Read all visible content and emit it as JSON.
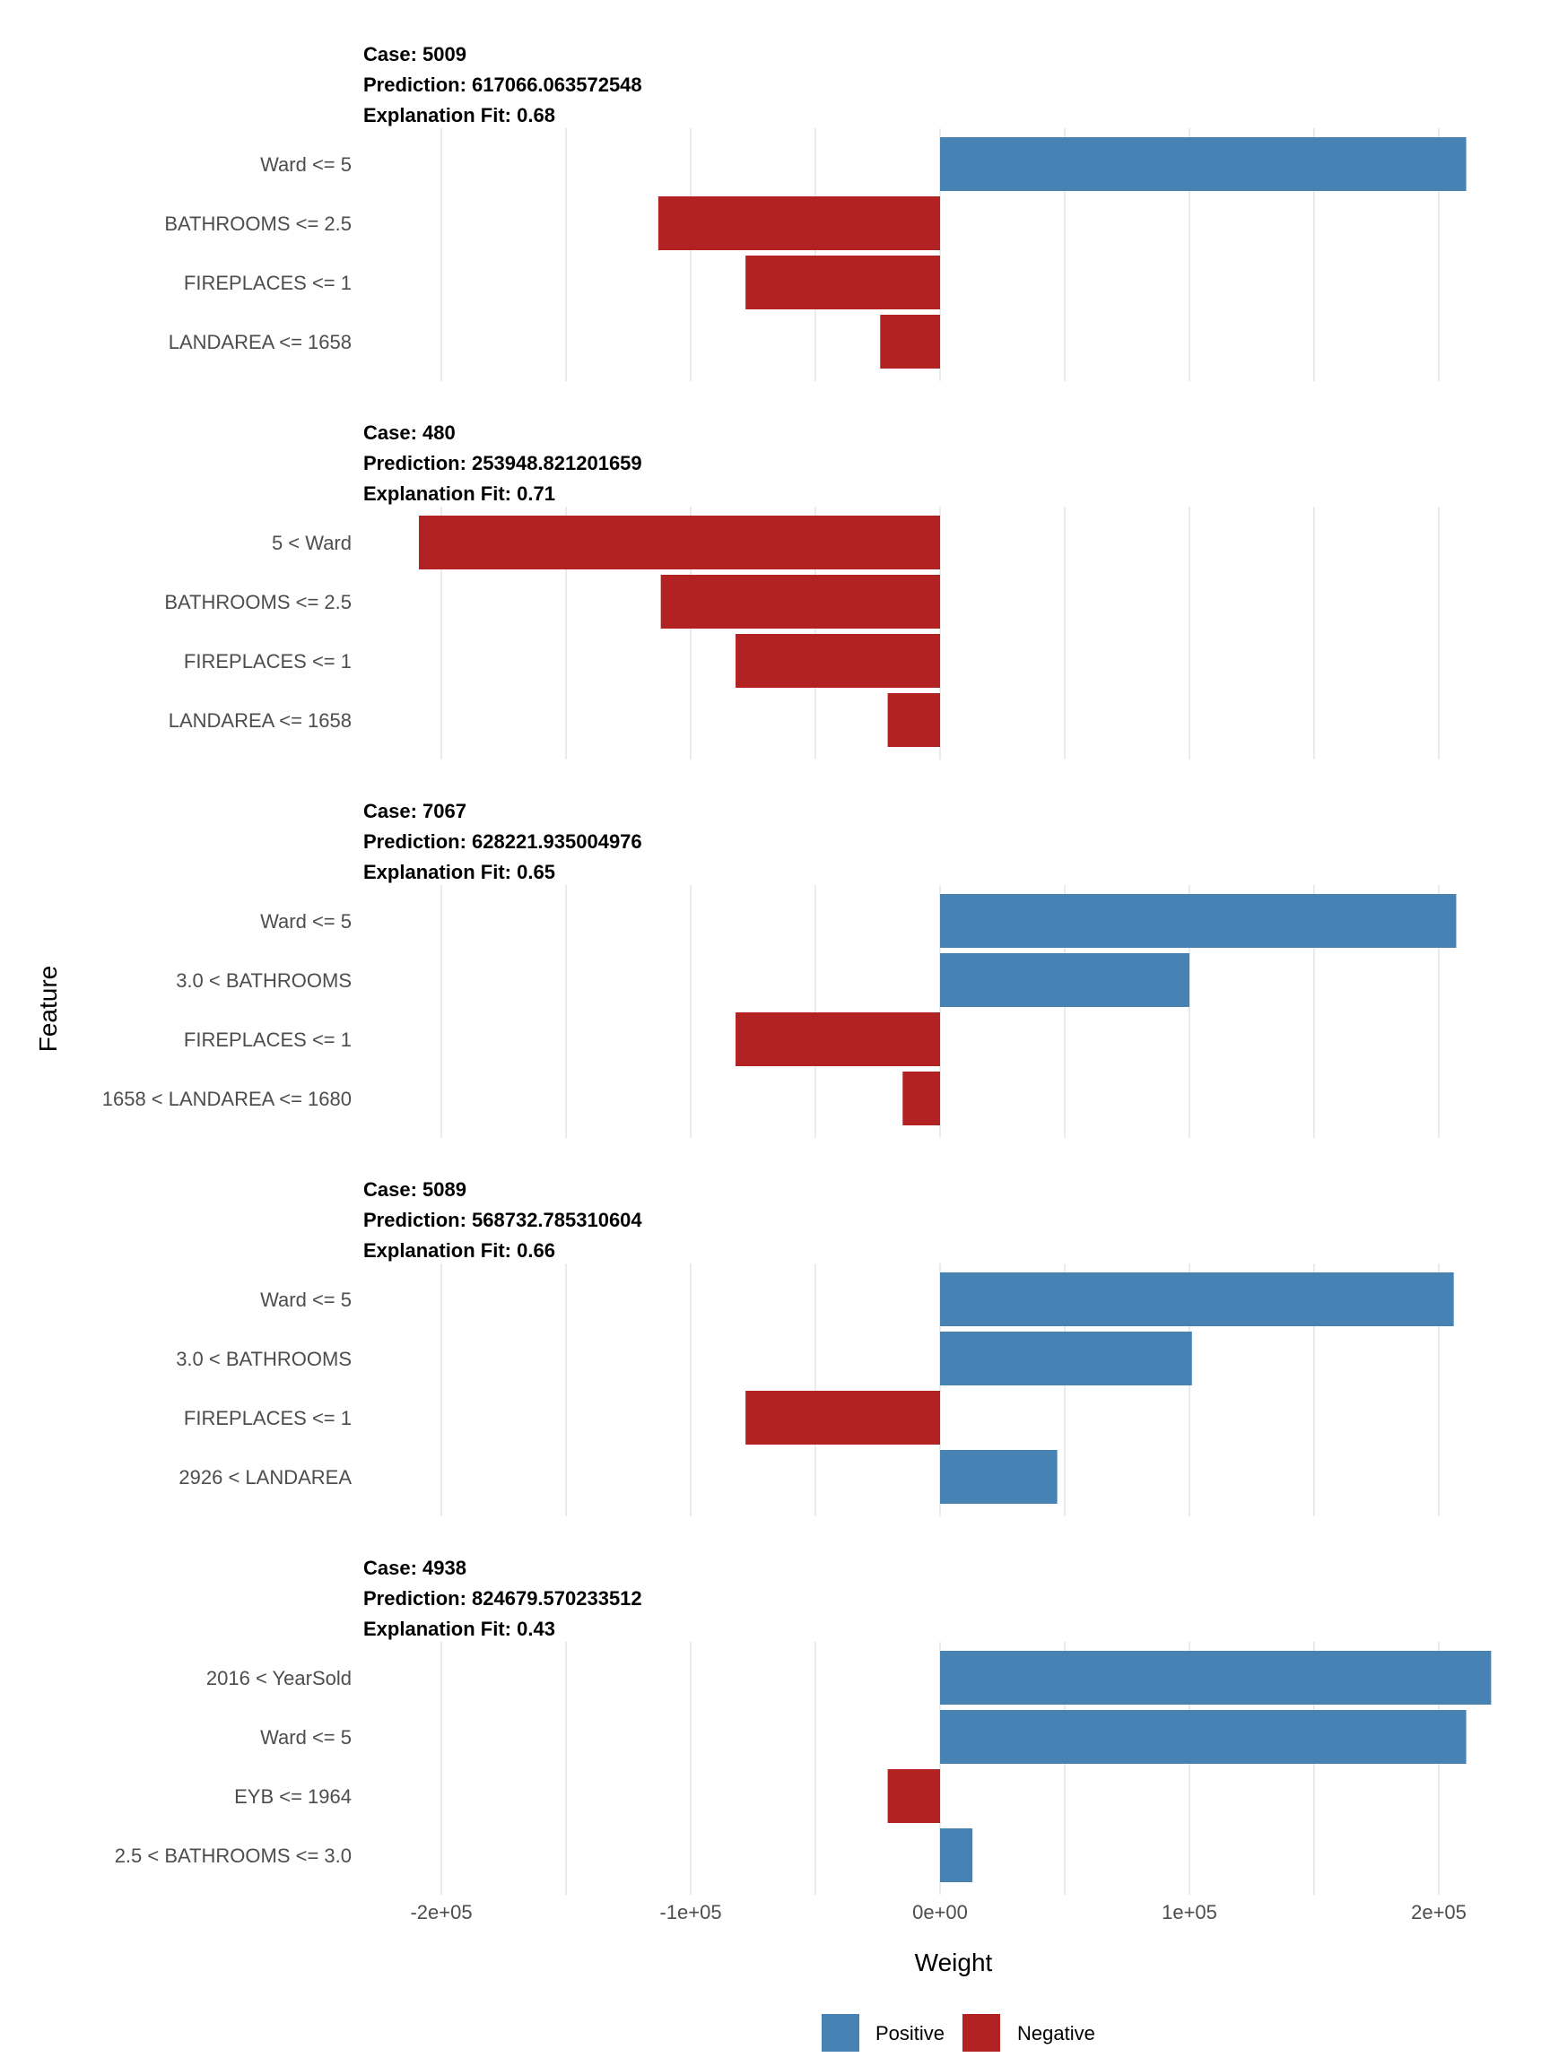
{
  "chart_data": {
    "type": "bar",
    "orientation": "horizontal",
    "xlabel": "Weight",
    "ylabel": "Feature",
    "xlim": [
      -230000,
      230000
    ],
    "x_ticks": [
      -200000,
      -100000,
      0,
      100000,
      200000
    ],
    "x_tick_labels": [
      "-2e+05",
      "-1e+05",
      "0e+00",
      "1e+05",
      "2e+05"
    ],
    "grid": true,
    "legend": {
      "position": "bottom",
      "entries": [
        {
          "label": "Positive",
          "color": "#4682b4"
        },
        {
          "label": "Negative",
          "color": "#b22222"
        }
      ]
    },
    "colors": {
      "positive": "#4682b4",
      "negative": "#b22222"
    },
    "panels": [
      {
        "case_label": "Case: 5009",
        "prediction_label": "Prediction: 617066.063572548",
        "fit_label": "Explanation Fit: 0.68",
        "features": [
          {
            "label": "Ward <= 5",
            "weight": 211000
          },
          {
            "label": "BATHROOMS <= 2.5",
            "weight": -113000
          },
          {
            "label": "FIREPLACES <= 1",
            "weight": -78000
          },
          {
            "label": "LANDAREA <= 1658",
            "weight": -24000
          }
        ]
      },
      {
        "case_label": "Case: 480",
        "prediction_label": "Prediction: 253948.821201659",
        "fit_label": "Explanation Fit: 0.71",
        "features": [
          {
            "label": "5 < Ward",
            "weight": -209000
          },
          {
            "label": "BATHROOMS <= 2.5",
            "weight": -112000
          },
          {
            "label": "FIREPLACES <= 1",
            "weight": -82000
          },
          {
            "label": "LANDAREA <= 1658",
            "weight": -21000
          }
        ]
      },
      {
        "case_label": "Case: 7067",
        "prediction_label": "Prediction: 628221.935004976",
        "fit_label": "Explanation Fit: 0.65",
        "features": [
          {
            "label": "Ward <= 5",
            "weight": 207000
          },
          {
            "label": "3.0 < BATHROOMS",
            "weight": 100000
          },
          {
            "label": "FIREPLACES <= 1",
            "weight": -82000
          },
          {
            "label": "1658 < LANDAREA <= 1680",
            "weight": -15000
          }
        ]
      },
      {
        "case_label": "Case: 5089",
        "prediction_label": "Prediction: 568732.785310604",
        "fit_label": "Explanation Fit: 0.66",
        "features": [
          {
            "label": "Ward <= 5",
            "weight": 206000
          },
          {
            "label": "3.0 < BATHROOMS",
            "weight": 101000
          },
          {
            "label": "FIREPLACES <= 1",
            "weight": -78000
          },
          {
            "label": "2926 < LANDAREA",
            "weight": 47000
          }
        ]
      },
      {
        "case_label": "Case: 4938",
        "prediction_label": "Prediction: 824679.570233512",
        "fit_label": "Explanation Fit: 0.43",
        "features": [
          {
            "label": "2016 < YearSold",
            "weight": 221000
          },
          {
            "label": "Ward <= 5",
            "weight": 211000
          },
          {
            "label": "EYB <= 1964",
            "weight": -21000
          },
          {
            "label": "2.5 < BATHROOMS <= 3.0",
            "weight": 13000
          }
        ]
      }
    ]
  }
}
